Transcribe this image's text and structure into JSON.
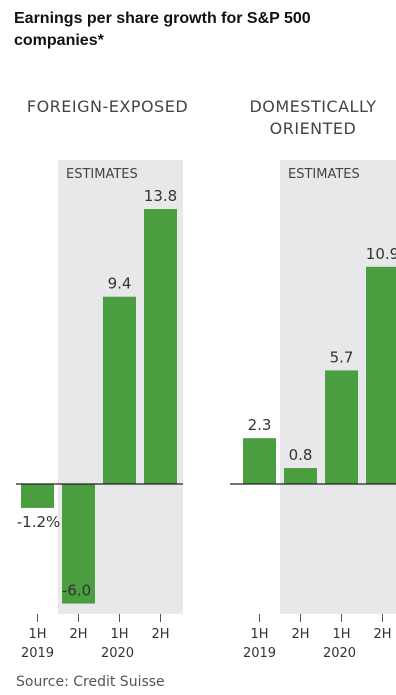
{
  "chart_data": {
    "type": "bar",
    "title": "Earnings per share growth for S&P 500 companies*",
    "source": "Source: Credit Suisse",
    "estimates_label": "ESTIMATES",
    "bar_color": "#4a9e3f",
    "estimates_shade": "#e8e8ea",
    "ylim": [
      -6.5,
      14.5
    ],
    "categories": [
      "1H 2019",
      "2H 2019",
      "1H 2020",
      "2H 2020"
    ],
    "tick_labels": [
      {
        "half": "1H",
        "year": "2019"
      },
      {
        "half": "2H",
        "year": ""
      },
      {
        "half": "1H",
        "year": "2020"
      },
      {
        "half": "2H",
        "year": ""
      }
    ],
    "panels": [
      {
        "heading_lines": [
          "FOREIGN-EXPOSED"
        ],
        "values": [
          -1.2,
          -6.0,
          9.4,
          13.8
        ],
        "data_labels": [
          "-1.2%",
          "-6.0",
          "9.4",
          "13.8"
        ],
        "estimates_from_index": 1
      },
      {
        "heading_lines": [
          "DOMESTICALLY",
          "ORIENTED"
        ],
        "values": [
          2.3,
          0.8,
          5.7,
          10.9
        ],
        "data_labels": [
          "2.3",
          "0.8",
          "5.7",
          "10.9"
        ],
        "estimates_from_index": 1
      }
    ]
  }
}
